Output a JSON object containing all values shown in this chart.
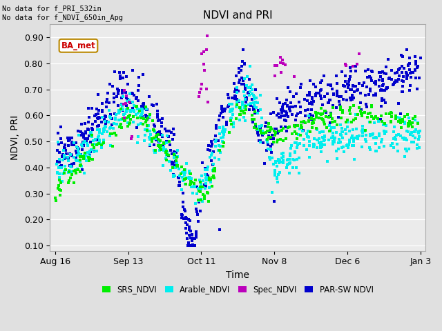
{
  "title": "NDVI and PRI",
  "xlabel": "Time",
  "ylabel": "NDVI, PRI",
  "ylim": [
    0.08,
    0.95
  ],
  "yticks": [
    0.1,
    0.2,
    0.3,
    0.4,
    0.5,
    0.6,
    0.7,
    0.8,
    0.9
  ],
  "annotation_text": "No data for f_PRI_532in\nNo data for f_NDVI_650in_Apg",
  "box_label": "BA_met",
  "bg_color": "#e0e0e0",
  "plot_bg_color": "#ebebeb",
  "colors": {
    "SRS_NDVI": "#00ee00",
    "Arable_NDVI": "#00eeee",
    "Spec_NDVI": "#bb00bb",
    "PAR_SW_NDVI": "#0000cc"
  },
  "x_tick_labels": [
    "Aug 16",
    "Sep 13",
    "Oct 11",
    "Nov 8",
    "Dec 6",
    "Jan 3"
  ],
  "x_tick_positions": [
    0,
    28,
    56,
    84,
    112,
    140
  ],
  "seed": 42
}
